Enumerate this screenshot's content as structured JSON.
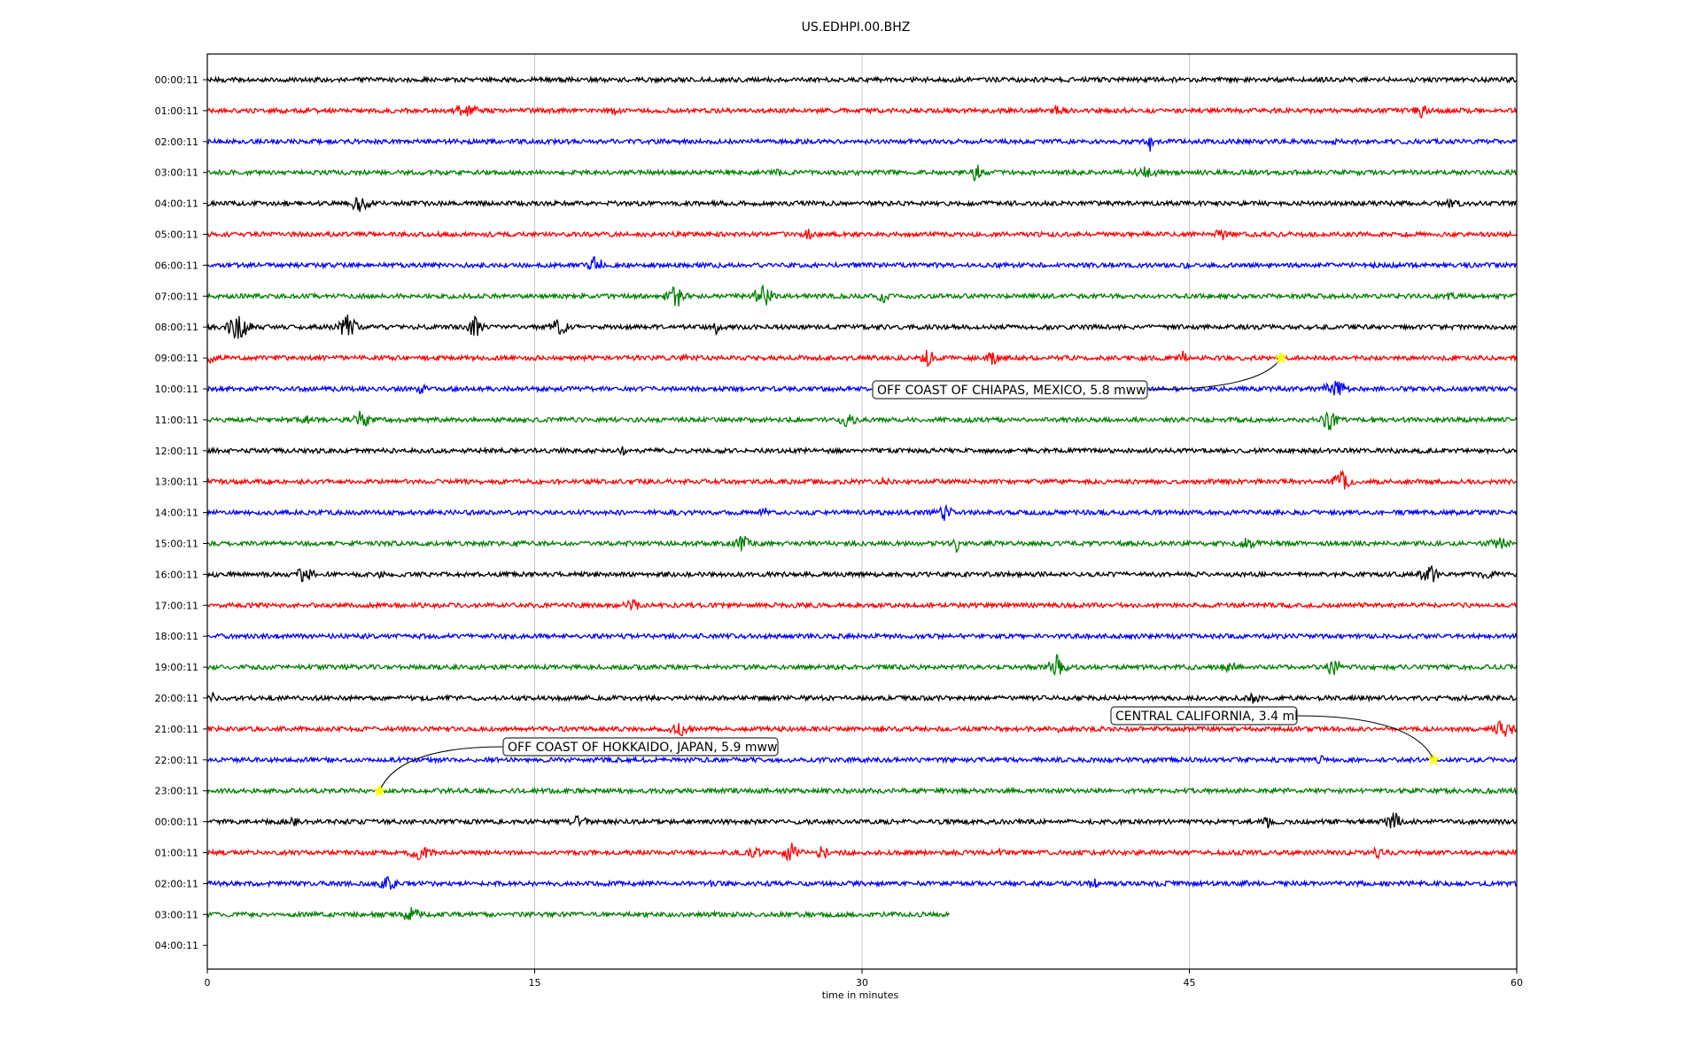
{
  "chart_data": {
    "type": "line",
    "title": "US.EDHPI.00.BHZ",
    "xlabel": "time in minutes",
    "ylabel": "",
    "xlim": [
      0,
      60
    ],
    "x_ticks": [
      "0",
      "15",
      "30",
      "45",
      "60"
    ],
    "x_tick_values": [
      0,
      15,
      30,
      45,
      60
    ],
    "vertical_grid": true,
    "row_labels": [
      "00:00:11",
      "01:00:11",
      "02:00:11",
      "03:00:11",
      "04:00:11",
      "05:00:11",
      "06:00:11",
      "07:00:11",
      "08:00:11",
      "09:00:11",
      "10:00:11",
      "11:00:11",
      "12:00:11",
      "13:00:11",
      "14:00:11",
      "15:00:11",
      "16:00:11",
      "17:00:11",
      "18:00:11",
      "19:00:11",
      "20:00:11",
      "21:00:11",
      "22:00:11",
      "23:00:11",
      "00:00:11",
      "01:00:11",
      "02:00:11",
      "03:00:11",
      "04:00:11"
    ],
    "row_colors": [
      "#000000",
      "#ff0000",
      "#0000ff",
      "#008000"
    ],
    "data_end_minute": 34,
    "data_end_row": 27,
    "events": [
      {
        "label": "OFF COAST OF CHIAPAS, MEXICO, 5.8 mww",
        "row": 9,
        "minute": 49.2
      },
      {
        "label": "CENTRAL CALIFORNIA, 3.4 ml",
        "row": 22,
        "minute": 56.2
      },
      {
        "label": "OFF COAST OF HOKKAIDO, JAPAN, 5.9 mww",
        "row": 23,
        "minute": 7.9
      }
    ],
    "marker_color": "#ffff00"
  }
}
